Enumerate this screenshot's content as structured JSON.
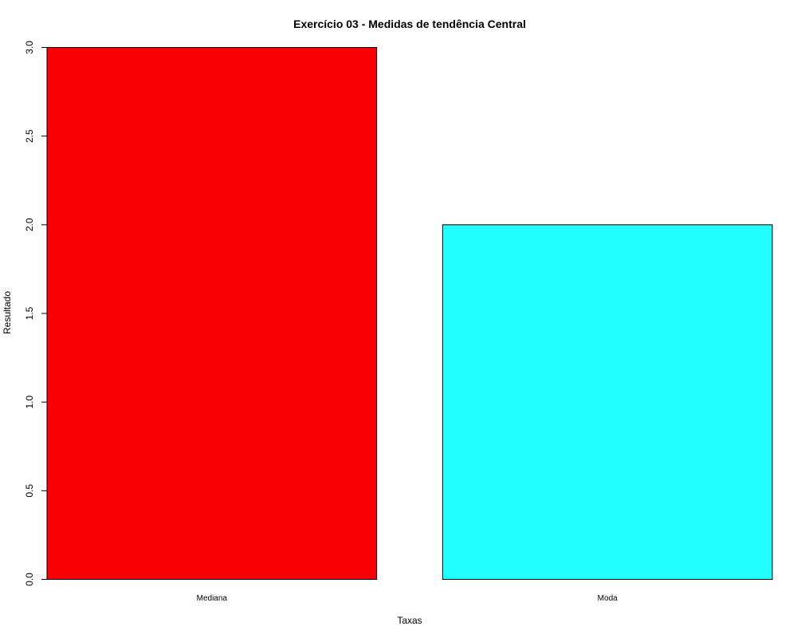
{
  "chart_data": {
    "type": "bar",
    "title": "Exercício 03 - Medidas de tendência Central",
    "xlabel": "Taxas",
    "ylabel": "Resultado",
    "categories": [
      "Mediana",
      "Moda"
    ],
    "values": [
      3,
      2
    ],
    "colors": [
      "#f90007",
      "#22ffff"
    ],
    "ylim": [
      0,
      3
    ],
    "yticks": [
      "0.0",
      "0.5",
      "1.0",
      "1.5",
      "2.0",
      "2.5",
      "3.0"
    ],
    "grid": false,
    "legend": "none"
  }
}
